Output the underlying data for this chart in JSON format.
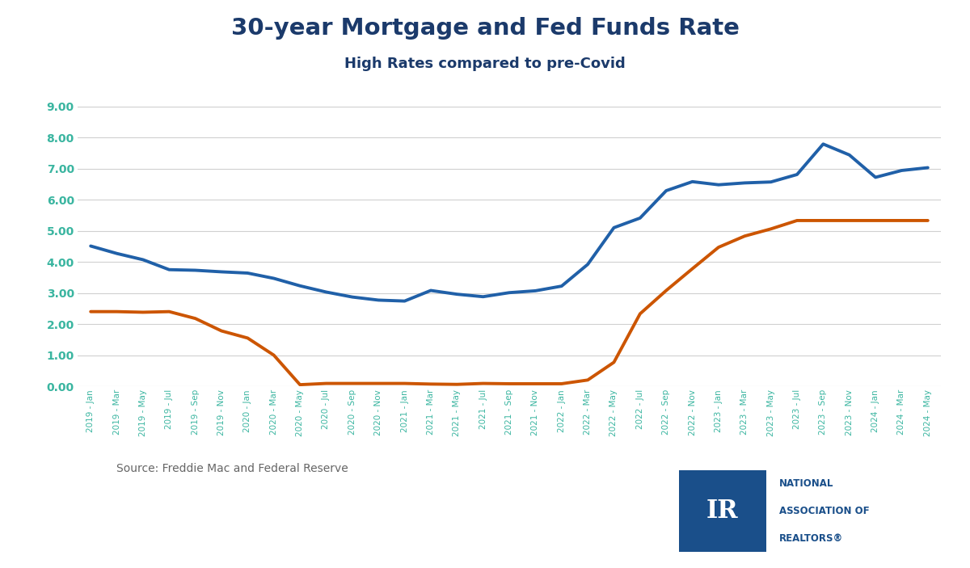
{
  "title": "30-year Mortgage and Fed Funds Rate",
  "subtitle": "High Rates compared to pre-Covid",
  "source_text": "Source: Freddie Mac and Federal Reserve",
  "title_color": "#1b3a6b",
  "subtitle_color": "#1b3a6b",
  "tick_color": "#3ab5a0",
  "background_color": "#ffffff",
  "grid_color": "#d0d0d0",
  "mortgage_color": "#2060a8",
  "fed_color": "#cc5500",
  "ylim": [
    0.0,
    9.5
  ],
  "yticks": [
    0.0,
    1.0,
    2.0,
    3.0,
    4.0,
    5.0,
    6.0,
    7.0,
    8.0,
    9.0
  ],
  "x_labels": [
    "2019 - Jan",
    "2019 - Mar",
    "2019 - May",
    "2019 - Jul",
    "2019 - Sep",
    "2019 - Nov",
    "2020 - Jan",
    "2020 - Mar",
    "2020 - May",
    "2020 - Jul",
    "2020 - Sep",
    "2020 - Nov",
    "2021 - Jan",
    "2021 - Mar",
    "2021 - May",
    "2021 - Jul",
    "2021 - Sep",
    "2021 - Nov",
    "2022 - Jan",
    "2022 - Mar",
    "2022 - May",
    "2022 - Jul",
    "2022 - Sep",
    "2022 - Nov",
    "2023 - Jan",
    "2023 - Mar",
    "2023 - May",
    "2023 - Jul",
    "2023 - Sep",
    "2023 - Nov",
    "2024 - Jan",
    "2024 - Mar",
    "2024 - May"
  ],
  "mortgage_rates": [
    4.51,
    4.27,
    4.07,
    3.75,
    3.73,
    3.68,
    3.64,
    3.47,
    3.23,
    3.03,
    2.87,
    2.77,
    2.74,
    3.08,
    2.96,
    2.88,
    3.01,
    3.07,
    3.22,
    3.92,
    5.1,
    5.41,
    6.29,
    6.58,
    6.48,
    6.54,
    6.57,
    6.81,
    7.79,
    7.44,
    6.72,
    6.94,
    7.03
  ],
  "fed_rates": [
    2.4,
    2.4,
    2.38,
    2.4,
    2.18,
    1.78,
    1.55,
    1.0,
    0.05,
    0.09,
    0.09,
    0.09,
    0.09,
    0.07,
    0.06,
    0.09,
    0.08,
    0.08,
    0.08,
    0.2,
    0.77,
    2.33,
    3.08,
    3.78,
    4.47,
    4.83,
    5.06,
    5.33,
    5.33,
    5.33,
    5.33,
    5.33,
    5.33
  ],
  "mortgage_linewidth": 2.8,
  "fed_linewidth": 2.8,
  "nar_box_color": "#1a4f8a",
  "nar_text_color": "#1a4f8a",
  "source_color": "#666666"
}
